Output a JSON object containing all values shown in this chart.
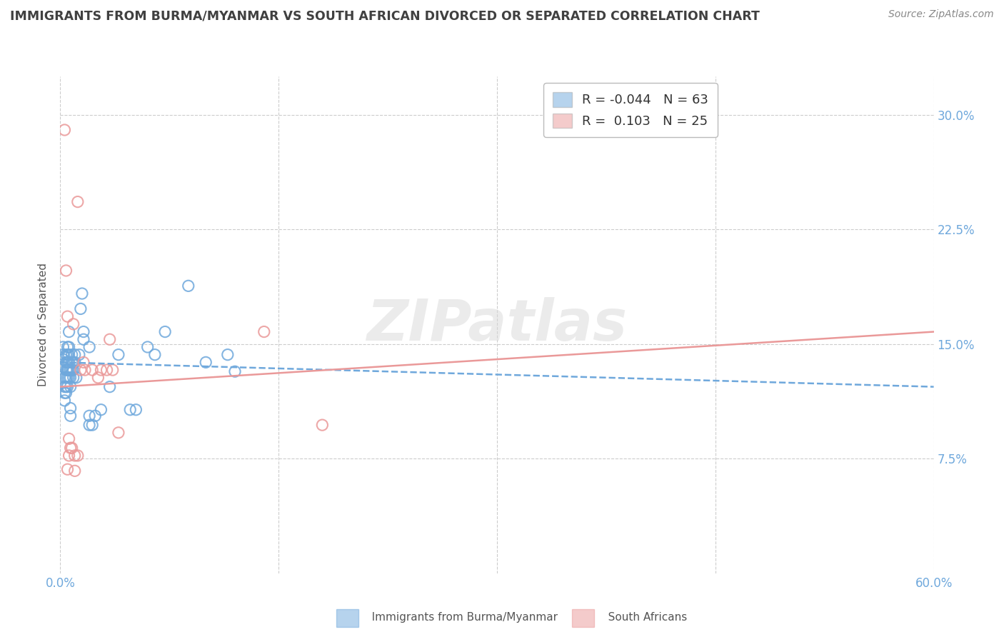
{
  "title": "IMMIGRANTS FROM BURMA/MYANMAR VS SOUTH AFRICAN DIVORCED OR SEPARATED CORRELATION CHART",
  "source": "Source: ZipAtlas.com",
  "ylabel_label": "Divorced or Separated",
  "xlim": [
    0.0,
    0.6
  ],
  "ylim": [
    0.0,
    0.325
  ],
  "watermark": "ZIPatlas",
  "blue_color": "#6fa8dc",
  "pink_color": "#ea9999",
  "blue_scatter": [
    [
      0.002,
      0.14
    ],
    [
      0.002,
      0.148
    ],
    [
      0.002,
      0.135
    ],
    [
      0.002,
      0.143
    ],
    [
      0.003,
      0.128
    ],
    [
      0.003,
      0.122
    ],
    [
      0.003,
      0.118
    ],
    [
      0.003,
      0.113
    ],
    [
      0.004,
      0.143
    ],
    [
      0.004,
      0.138
    ],
    [
      0.004,
      0.133
    ],
    [
      0.004,
      0.128
    ],
    [
      0.004,
      0.122
    ],
    [
      0.004,
      0.118
    ],
    [
      0.005,
      0.133
    ],
    [
      0.005,
      0.143
    ],
    [
      0.005,
      0.148
    ],
    [
      0.005,
      0.138
    ],
    [
      0.005,
      0.133
    ],
    [
      0.005,
      0.128
    ],
    [
      0.005,
      0.122
    ],
    [
      0.006,
      0.158
    ],
    [
      0.006,
      0.148
    ],
    [
      0.006,
      0.143
    ],
    [
      0.006,
      0.138
    ],
    [
      0.006,
      0.133
    ],
    [
      0.006,
      0.128
    ],
    [
      0.007,
      0.133
    ],
    [
      0.007,
      0.128
    ],
    [
      0.007,
      0.122
    ],
    [
      0.007,
      0.108
    ],
    [
      0.007,
      0.103
    ],
    [
      0.008,
      0.143
    ],
    [
      0.008,
      0.138
    ],
    [
      0.008,
      0.133
    ],
    [
      0.009,
      0.138
    ],
    [
      0.009,
      0.133
    ],
    [
      0.009,
      0.128
    ],
    [
      0.01,
      0.138
    ],
    [
      0.01,
      0.143
    ],
    [
      0.011,
      0.128
    ],
    [
      0.013,
      0.143
    ],
    [
      0.014,
      0.173
    ],
    [
      0.015,
      0.183
    ],
    [
      0.016,
      0.158
    ],
    [
      0.016,
      0.153
    ],
    [
      0.02,
      0.148
    ],
    [
      0.02,
      0.103
    ],
    [
      0.02,
      0.097
    ],
    [
      0.022,
      0.097
    ],
    [
      0.024,
      0.103
    ],
    [
      0.028,
      0.107
    ],
    [
      0.034,
      0.122
    ],
    [
      0.04,
      0.143
    ],
    [
      0.048,
      0.107
    ],
    [
      0.052,
      0.107
    ],
    [
      0.06,
      0.148
    ],
    [
      0.065,
      0.143
    ],
    [
      0.072,
      0.158
    ],
    [
      0.088,
      0.188
    ],
    [
      0.1,
      0.138
    ],
    [
      0.115,
      0.143
    ],
    [
      0.12,
      0.132
    ]
  ],
  "pink_scatter": [
    [
      0.003,
      0.29
    ],
    [
      0.004,
      0.198
    ],
    [
      0.005,
      0.168
    ],
    [
      0.005,
      0.068
    ],
    [
      0.006,
      0.077
    ],
    [
      0.006,
      0.088
    ],
    [
      0.007,
      0.082
    ],
    [
      0.008,
      0.082
    ],
    [
      0.009,
      0.163
    ],
    [
      0.01,
      0.077
    ],
    [
      0.01,
      0.067
    ],
    [
      0.012,
      0.243
    ],
    [
      0.012,
      0.077
    ],
    [
      0.014,
      0.133
    ],
    [
      0.016,
      0.138
    ],
    [
      0.017,
      0.133
    ],
    [
      0.022,
      0.133
    ],
    [
      0.026,
      0.128
    ],
    [
      0.028,
      0.133
    ],
    [
      0.032,
      0.133
    ],
    [
      0.034,
      0.153
    ],
    [
      0.036,
      0.133
    ],
    [
      0.04,
      0.092
    ],
    [
      0.14,
      0.158
    ],
    [
      0.18,
      0.097
    ]
  ],
  "blue_line_x": [
    0.0,
    0.6
  ],
  "blue_line_y": [
    0.138,
    0.122
  ],
  "pink_line_x": [
    0.0,
    0.6
  ],
  "pink_line_y": [
    0.122,
    0.158
  ],
  "grid_color": "#cccccc",
  "background_color": "#ffffff",
  "title_color": "#404040",
  "ytick_values": [
    0.075,
    0.15,
    0.225,
    0.3
  ],
  "ytick_labels": [
    "7.5%",
    "15.0%",
    "22.5%",
    "30.0%"
  ],
  "xtick_left_label": "0.0%",
  "xtick_right_label": "60.0%",
  "legend_blue_label": "R = -0.044   N = 63",
  "legend_pink_label": "R =  0.103   N = 25",
  "bottom_blue_label": "Immigrants from Burma/Myanmar",
  "bottom_pink_label": "South Africans"
}
